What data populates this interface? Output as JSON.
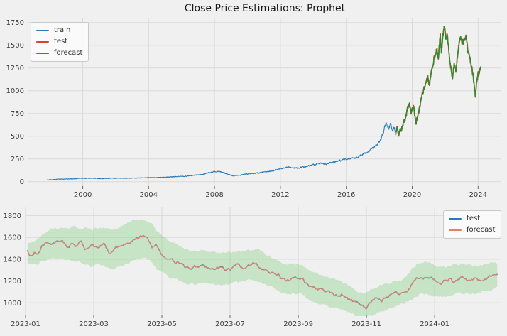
{
  "figure": {
    "bg": "#f0f0f0",
    "grid_color": "#d9d9d9",
    "tick_color": "#666666",
    "label_color": "#3a3a3a",
    "accent_blue": "#2b7bba",
    "accent_red": "#d8432e",
    "accent_green": "#2e8b2e",
    "accent_salmon": "#e0816c"
  },
  "chart_data": [
    {
      "type": "line",
      "name": "full-history-forecast",
      "title": "Close Price Estimations: Prophet",
      "xlabel": "",
      "ylabel": "",
      "grid": true,
      "xlim": [
        1996.7,
        2025.41
      ],
      "ylim": [
        -49,
        1802
      ],
      "xticks": [
        {
          "v": 2000,
          "t": "2000"
        },
        {
          "v": 2004,
          "t": "2004"
        },
        {
          "v": 2008,
          "t": "2008"
        },
        {
          "v": 2012,
          "t": "2012"
        },
        {
          "v": 2016,
          "t": "2016"
        },
        {
          "v": 2020,
          "t": "2020"
        },
        {
          "v": 2024,
          "t": "2024"
        }
      ],
      "yticks": [
        {
          "v": 0,
          "t": "0"
        },
        {
          "v": 250,
          "t": "250"
        },
        {
          "v": 500,
          "t": "500"
        },
        {
          "v": 750,
          "t": "750"
        },
        {
          "v": 1000,
          "t": "1000"
        },
        {
          "v": 1250,
          "t": "1250"
        },
        {
          "v": 1500,
          "t": "1500"
        },
        {
          "v": 1750,
          "t": "1750"
        }
      ],
      "legend": {
        "loc": "upper-left",
        "items": [
          {
            "label": "train",
            "color": "#2b7bba"
          },
          {
            "label": "test",
            "color": "#d8432e"
          },
          {
            "label": "forecast",
            "color": "#2e8b2e"
          }
        ]
      },
      "series": [
        {
          "name": "train",
          "color": "#2b7bba",
          "width": 1.1,
          "seed": 5,
          "noise_base": 1.2,
          "noise_scale": 0.016,
          "step": 0.014,
          "anchors": [
            [
              1997.85,
              21
            ],
            [
              1998.4,
              25
            ],
            [
              1999.0,
              29
            ],
            [
              1999.6,
              33
            ],
            [
              2000.1,
              35
            ],
            [
              2000.6,
              37
            ],
            [
              2001.1,
              33
            ],
            [
              2001.6,
              36
            ],
            [
              2002.1,
              38
            ],
            [
              2002.6,
              36
            ],
            [
              2003.1,
              40
            ],
            [
              2003.6,
              43
            ],
            [
              2004.1,
              46
            ],
            [
              2004.6,
              45
            ],
            [
              2005.1,
              50
            ],
            [
              2005.6,
              54
            ],
            [
              2006.1,
              59
            ],
            [
              2006.6,
              67
            ],
            [
              2007.1,
              76
            ],
            [
              2007.5,
              90
            ],
            [
              2007.9,
              108
            ],
            [
              2008.2,
              115
            ],
            [
              2008.6,
              95
            ],
            [
              2009.1,
              65
            ],
            [
              2009.5,
              72
            ],
            [
              2010.0,
              85
            ],
            [
              2010.5,
              92
            ],
            [
              2011.0,
              105
            ],
            [
              2011.5,
              118
            ],
            [
              2011.8,
              135
            ],
            [
              2012.1,
              148
            ],
            [
              2012.4,
              160
            ],
            [
              2012.7,
              152
            ],
            [
              2013.0,
              150
            ],
            [
              2013.4,
              162
            ],
            [
              2013.8,
              175
            ],
            [
              2014.3,
              200
            ],
            [
              2014.8,
              195
            ],
            [
              2015.3,
              220
            ],
            [
              2015.8,
              240
            ],
            [
              2016.2,
              250
            ],
            [
              2016.7,
              270
            ],
            [
              2017.1,
              310
            ],
            [
              2017.5,
              350
            ],
            [
              2017.9,
              420
            ],
            [
              2018.15,
              480
            ],
            [
              2018.4,
              640
            ],
            [
              2018.55,
              580
            ],
            [
              2018.7,
              650
            ],
            [
              2018.8,
              560
            ],
            [
              2018.9,
              590
            ],
            [
              2019.0,
              545
            ]
          ]
        },
        {
          "name": "test",
          "color": "#d8432e",
          "width": 1.7,
          "seed": 7,
          "noise_base": 19,
          "noise_scale": 0,
          "step": 0.011,
          "anchors": [
            [
              2019.0,
              531
            ],
            [
              2019.1,
              581
            ],
            [
              2019.18,
              521
            ],
            [
              2019.4,
              611
            ],
            [
              2019.6,
              701
            ],
            [
              2019.8,
              871
            ],
            [
              2019.95,
              761
            ],
            [
              2020.1,
              811
            ],
            [
              2020.22,
              641
            ],
            [
              2020.35,
              721
            ],
            [
              2020.5,
              881
            ],
            [
              2020.65,
              976
            ],
            [
              2020.8,
              1061
            ],
            [
              2020.95,
              1131
            ],
            [
              2021.05,
              1081
            ],
            [
              2021.2,
              1221
            ],
            [
              2021.35,
              1381
            ],
            [
              2021.5,
              1451
            ],
            [
              2021.6,
              1361
            ],
            [
              2021.7,
              1611
            ],
            [
              2021.78,
              1421
            ],
            [
              2021.85,
              1561
            ],
            [
              2021.95,
              1721
            ],
            [
              2022.05,
              1551
            ],
            [
              2022.15,
              1601
            ],
            [
              2022.3,
              1321
            ],
            [
              2022.45,
              1111
            ],
            [
              2022.55,
              1291
            ],
            [
              2022.65,
              1201
            ],
            [
              2022.8,
              1481
            ],
            [
              2022.95,
              1611
            ],
            [
              2023.0,
              1530
            ],
            [
              2023.1,
              1545
            ],
            [
              2023.2,
              1560
            ],
            [
              2023.29,
              1600
            ],
            [
              2023.35,
              1450
            ],
            [
              2023.45,
              1390
            ],
            [
              2023.55,
              1310
            ],
            [
              2023.65,
              1230
            ],
            [
              2023.75,
              1090
            ],
            [
              2023.83,
              945
            ],
            [
              2023.95,
              1160
            ],
            [
              2024.05,
              1200
            ],
            [
              2024.17,
              1270
            ]
          ]
        },
        {
          "name": "forecast",
          "color": "#2e8b2e",
          "width": 1.5,
          "seed": 7,
          "noise_base": 14,
          "noise_scale": 0,
          "step": 0.011,
          "same_as": "test",
          "anchors": []
        }
      ]
    },
    {
      "type": "line",
      "name": "test-period-zoom",
      "title": "",
      "xlabel": "",
      "ylabel": "",
      "grid": true,
      "xlim": [
        2023.0,
        2024.163
      ],
      "ylim": [
        885,
        1881
      ],
      "xticks": [
        {
          "v": 2023.0,
          "t": "2023-01"
        },
        {
          "v": 2023.1667,
          "t": "2023-03"
        },
        {
          "v": 2023.3333,
          "t": "2023-05"
        },
        {
          "v": 2023.5,
          "t": "2023-07"
        },
        {
          "v": 2023.6667,
          "t": "2023-09"
        },
        {
          "v": 2023.8333,
          "t": "2023-11"
        },
        {
          "v": 2024.0,
          "t": "2024-01"
        }
      ],
      "yticks": [
        {
          "v": 1000,
          "t": "1000"
        },
        {
          "v": 1200,
          "t": "1200"
        },
        {
          "v": 1400,
          "t": "1400"
        },
        {
          "v": 1600,
          "t": "1600"
        },
        {
          "v": 1800,
          "t": "1800"
        }
      ],
      "legend": {
        "loc": "upper-right",
        "items": [
          {
            "label": "test",
            "color": "#2b7bba"
          },
          {
            "label": "forecast",
            "color": "#e0816c"
          }
        ]
      },
      "band": {
        "name": "uncertainty-interval",
        "color": "#5ec457",
        "opacity": 0.27,
        "seed": 9,
        "noise": 7,
        "smooth": 7,
        "halfwidth": [
          [
            2023.0,
            97
          ],
          [
            2023.07,
            140
          ],
          [
            2023.16,
            165
          ],
          [
            2023.25,
            185
          ],
          [
            2023.33,
            172
          ],
          [
            2023.42,
            152
          ],
          [
            2023.5,
            142
          ],
          [
            2023.58,
            140
          ],
          [
            2023.67,
            135
          ],
          [
            2023.75,
            128
          ],
          [
            2023.81,
            115
          ],
          [
            2023.88,
            118
          ],
          [
            2023.935,
            120
          ],
          [
            2023.945,
            150
          ],
          [
            2024.0,
            142
          ],
          [
            2024.08,
            130
          ],
          [
            2024.16,
            112
          ]
        ]
      },
      "series": [
        {
          "name": "test",
          "color": "#2b7bba",
          "width": 1.4,
          "seed": 3,
          "noise_base": 8.5,
          "noise_scale": 0,
          "step": 0.00274,
          "anchors": [
            [
              2023.005,
              1476
            ],
            [
              2023.011,
              1421
            ],
            [
              2023.022,
              1470
            ],
            [
              2023.03,
              1445
            ],
            [
              2023.042,
              1522
            ],
            [
              2023.052,
              1560
            ],
            [
              2023.063,
              1520
            ],
            [
              2023.074,
              1545
            ],
            [
              2023.088,
              1572
            ],
            [
              2023.101,
              1510
            ],
            [
              2023.115,
              1548
            ],
            [
              2023.126,
              1519
            ],
            [
              2023.137,
              1574
            ],
            [
              2023.145,
              1478
            ],
            [
              2023.164,
              1530
            ],
            [
              2023.178,
              1490
            ],
            [
              2023.192,
              1563
            ],
            [
              2023.205,
              1455
            ],
            [
              2023.225,
              1510
            ],
            [
              2023.241,
              1542
            ],
            [
              2023.258,
              1552
            ],
            [
              2023.277,
              1596
            ],
            [
              2023.288,
              1608
            ],
            [
              2023.299,
              1585
            ],
            [
              2023.31,
              1510
            ],
            [
              2023.318,
              1532
            ],
            [
              2023.33,
              1455
            ],
            [
              2023.338,
              1422
            ],
            [
              2023.349,
              1390
            ],
            [
              2023.357,
              1409
            ],
            [
              2023.368,
              1368
            ],
            [
              2023.379,
              1375
            ],
            [
              2023.395,
              1314
            ],
            [
              2023.414,
              1336
            ],
            [
              2023.425,
              1323
            ],
            [
              2023.436,
              1336
            ],
            [
              2023.45,
              1303
            ],
            [
              2023.461,
              1314
            ],
            [
              2023.472,
              1323
            ],
            [
              2023.485,
              1303
            ],
            [
              2023.496,
              1314
            ],
            [
              2023.507,
              1323
            ],
            [
              2023.518,
              1347
            ],
            [
              2023.532,
              1323
            ],
            [
              2023.543,
              1336
            ],
            [
              2023.562,
              1368
            ],
            [
              2023.573,
              1323
            ],
            [
              2023.584,
              1314
            ],
            [
              2023.595,
              1292
            ],
            [
              2023.608,
              1271
            ],
            [
              2023.619,
              1249
            ],
            [
              2023.63,
              1216
            ],
            [
              2023.644,
              1205
            ],
            [
              2023.655,
              1227
            ],
            [
              2023.668,
              1238
            ],
            [
              2023.677,
              1216
            ],
            [
              2023.685,
              1184
            ],
            [
              2023.696,
              1151
            ],
            [
              2023.712,
              1118
            ],
            [
              2023.723,
              1140
            ],
            [
              2023.734,
              1107
            ],
            [
              2023.748,
              1096
            ],
            [
              2023.762,
              1064
            ],
            [
              2023.773,
              1086
            ],
            [
              2023.786,
              1042
            ],
            [
              2023.8,
              1020
            ],
            [
              2023.811,
              987
            ],
            [
              2023.819,
              965
            ],
            [
              2023.833,
              944
            ],
            [
              2023.841,
              987
            ],
            [
              2023.849,
              1020
            ],
            [
              2023.858,
              1053
            ],
            [
              2023.869,
              1009
            ],
            [
              2023.88,
              1053
            ],
            [
              2023.891,
              1074
            ],
            [
              2023.907,
              1086
            ],
            [
              2023.921,
              1096
            ],
            [
              2023.932,
              1107
            ],
            [
              2023.94,
              1140
            ],
            [
              2023.948,
              1205
            ],
            [
              2023.959,
              1227
            ],
            [
              2023.97,
              1231
            ],
            [
              2023.984,
              1242
            ],
            [
              2023.995,
              1216
            ],
            [
              2024.007,
              1194
            ],
            [
              2024.015,
              1168
            ],
            [
              2024.026,
              1205
            ],
            [
              2024.037,
              1216
            ],
            [
              2024.045,
              1194
            ],
            [
              2024.059,
              1227
            ],
            [
              2024.07,
              1238
            ],
            [
              2024.081,
              1216
            ],
            [
              2024.089,
              1205
            ],
            [
              2024.1,
              1227
            ],
            [
              2024.111,
              1205
            ],
            [
              2024.122,
              1216
            ],
            [
              2024.133,
              1238
            ],
            [
              2024.144,
              1249
            ],
            [
              2024.155,
              1275
            ]
          ]
        },
        {
          "name": "forecast",
          "color": "#e0816c",
          "width": 1.3,
          "seed": 3,
          "noise_base": 7,
          "noise_scale": 0,
          "step": 0.00274,
          "same_as": "test",
          "anchors": []
        }
      ]
    }
  ]
}
